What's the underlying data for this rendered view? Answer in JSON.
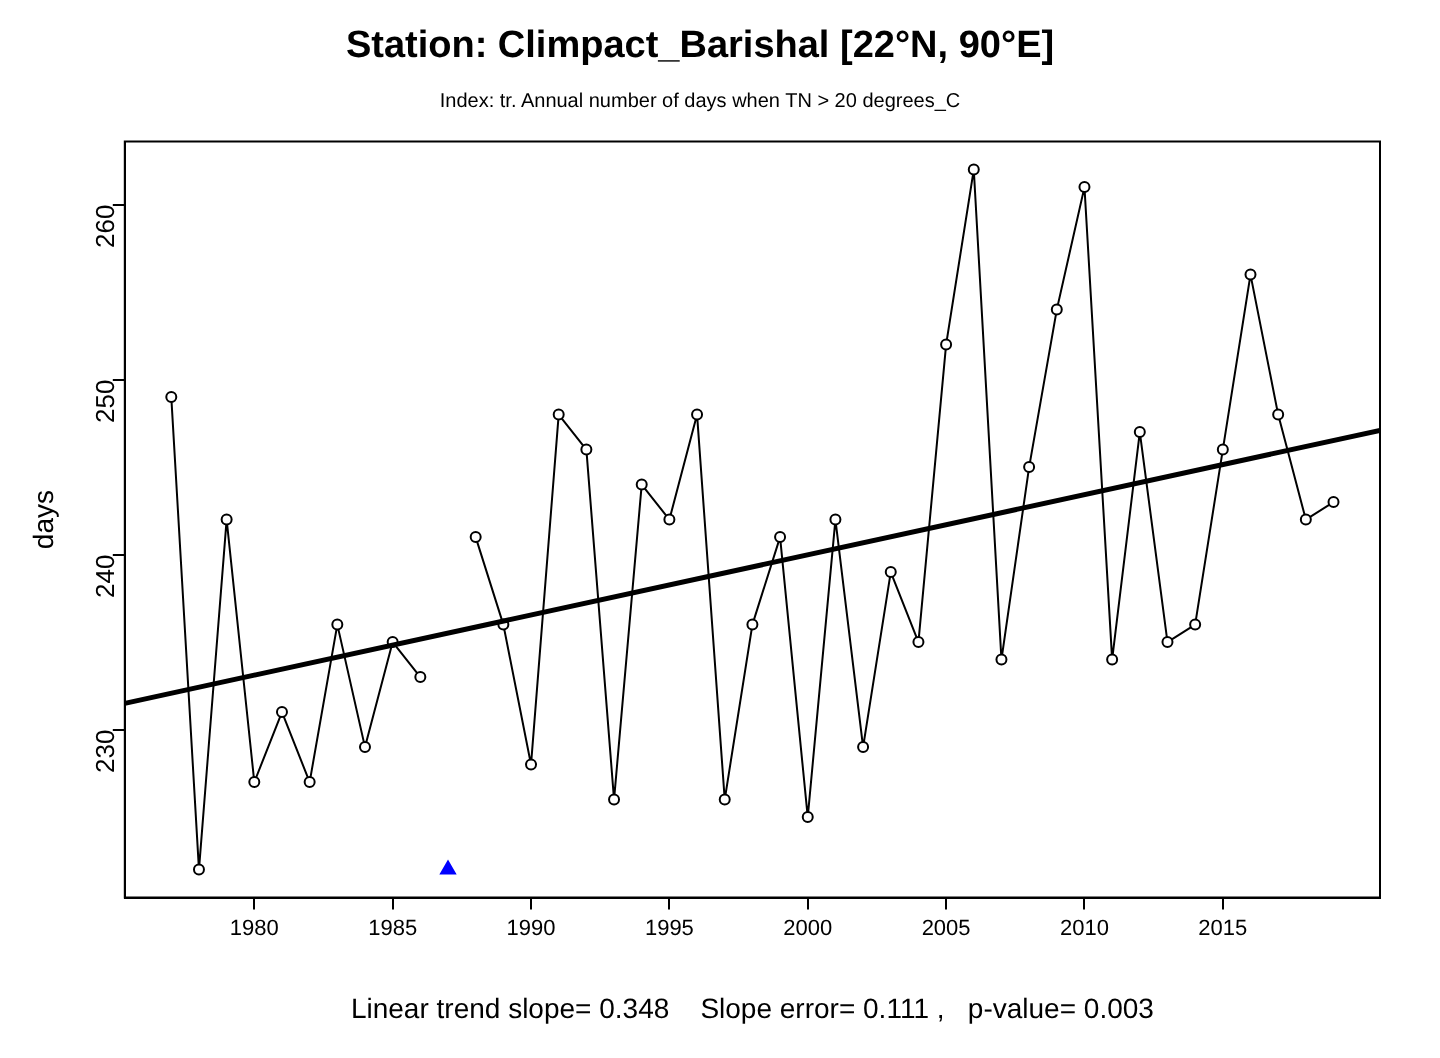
{
  "chart_data": {
    "type": "line",
    "title": "Station: Climpact_Barishal [22°N, 90°E]",
    "subtitle": "Index: tr. Annual number of days when TN > 20 degrees_C",
    "ylabel": "days",
    "annotations": [
      "Linear trend slope= 0.348    Slope error= 0.111 ,   p-value= 0.003"
    ],
    "x": [
      1977,
      1978,
      1979,
      1980,
      1981,
      1982,
      1983,
      1984,
      1985,
      1986,
      1987,
      1988,
      1989,
      1990,
      1991,
      1992,
      1993,
      1994,
      1995,
      1996,
      1997,
      1998,
      1999,
      2000,
      2001,
      2002,
      2003,
      2004,
      2005,
      2006,
      2007,
      2008,
      2009,
      2010,
      2011,
      2012,
      2013,
      2014,
      2015,
      2016,
      2017,
      2018,
      2019
    ],
    "series": [
      {
        "color": "#000000",
        "marker": "circle",
        "values": [
          249,
          222,
          242,
          227,
          231,
          227,
          236,
          229,
          235,
          233,
          null,
          241,
          236,
          228,
          248,
          246,
          226,
          244,
          242,
          248,
          226,
          236,
          241,
          225,
          242,
          229,
          239,
          235,
          252,
          262,
          234,
          245,
          254,
          261,
          234,
          247,
          235,
          236,
          246,
          256,
          248,
          242,
          243
        ]
      },
      {
        "type": "line",
        "color": "#000000",
        "marker": "none",
        "x": [
          1975.32,
          2020.68
        ],
        "values": [
          231.5,
          247.1
        ]
      },
      {
        "type": "scatter",
        "color": "#0000ff",
        "marker": "triangle",
        "x": [
          1987
        ],
        "values": [
          222
        ]
      }
    ],
    "xlim": [
      1975.32,
      2020.68
    ],
    "xticks": [
      1980,
      1985,
      1990,
      1995,
      2000,
      2005,
      2010,
      2015
    ],
    "ylim": [
      220.4,
      263.6
    ],
    "yticks": [
      230,
      240,
      250,
      260
    ],
    "grid": false,
    "legend": false
  }
}
